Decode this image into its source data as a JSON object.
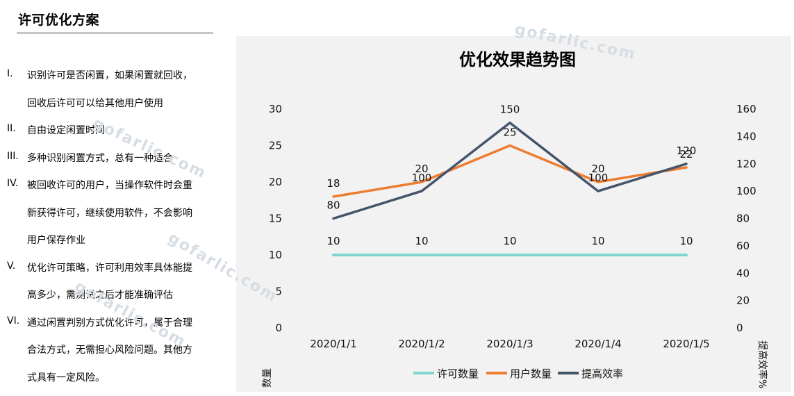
{
  "sidebar": {
    "title": "许可优化方案",
    "items": [
      {
        "numeral": "I.",
        "lines": [
          "识别许可是否闲置，如果闲置就回收，",
          "回收后许可可以给其他用户使用"
        ]
      },
      {
        "numeral": "II.",
        "lines": [
          "自由设定闲置时间"
        ]
      },
      {
        "numeral": "III.",
        "lines": [
          "多种识别闲置方式，总有一种适合"
        ]
      },
      {
        "numeral": "IV.",
        "lines": [
          "被回收许可的用户，当操作软件时会重",
          "新获得许可，继续使用软件，不会影响",
          "用户保存作业"
        ]
      },
      {
        "numeral": "V.",
        "lines": [
          "优化许可策略，许可利用效率具体能提",
          "高多少，需测试之后才能准确评估"
        ]
      },
      {
        "numeral": "VI.",
        "lines": [
          "通过闲置判别方式优化许可，属于合理",
          "合法方式，无需担心风险问题。其他方",
          "式具有一定风险。"
        ]
      }
    ]
  },
  "watermark": "gofarlic.com",
  "chart_data": {
    "type": "line",
    "title": "优化效果趋势图",
    "categories": [
      "2020/1/1",
      "2020/1/2",
      "2020/1/3",
      "2020/1/4",
      "2020/1/5"
    ],
    "ylabel": "数量",
    "y2label": "提高效率%",
    "ylim": [
      0,
      30
    ],
    "yticks": [
      "0",
      "5",
      "10",
      "15",
      "20",
      "25",
      "30"
    ],
    "y2lim": [
      0,
      160
    ],
    "y2ticks": [
      "0",
      "20",
      "40",
      "60",
      "80",
      "100",
      "120",
      "140",
      "160"
    ],
    "grid": false,
    "legend_position": "bottom",
    "series": [
      {
        "name": "许可数量",
        "axis": "left",
        "color": "#7dd6cf",
        "values": [
          10,
          10,
          10,
          10,
          10
        ]
      },
      {
        "name": "用户数量",
        "axis": "left",
        "color": "#ed7d31",
        "values": [
          18,
          20,
          25,
          20,
          22
        ]
      },
      {
        "name": "提高效率",
        "axis": "right",
        "color": "#44546a",
        "values": [
          80,
          100,
          150,
          100,
          120
        ]
      }
    ]
  }
}
